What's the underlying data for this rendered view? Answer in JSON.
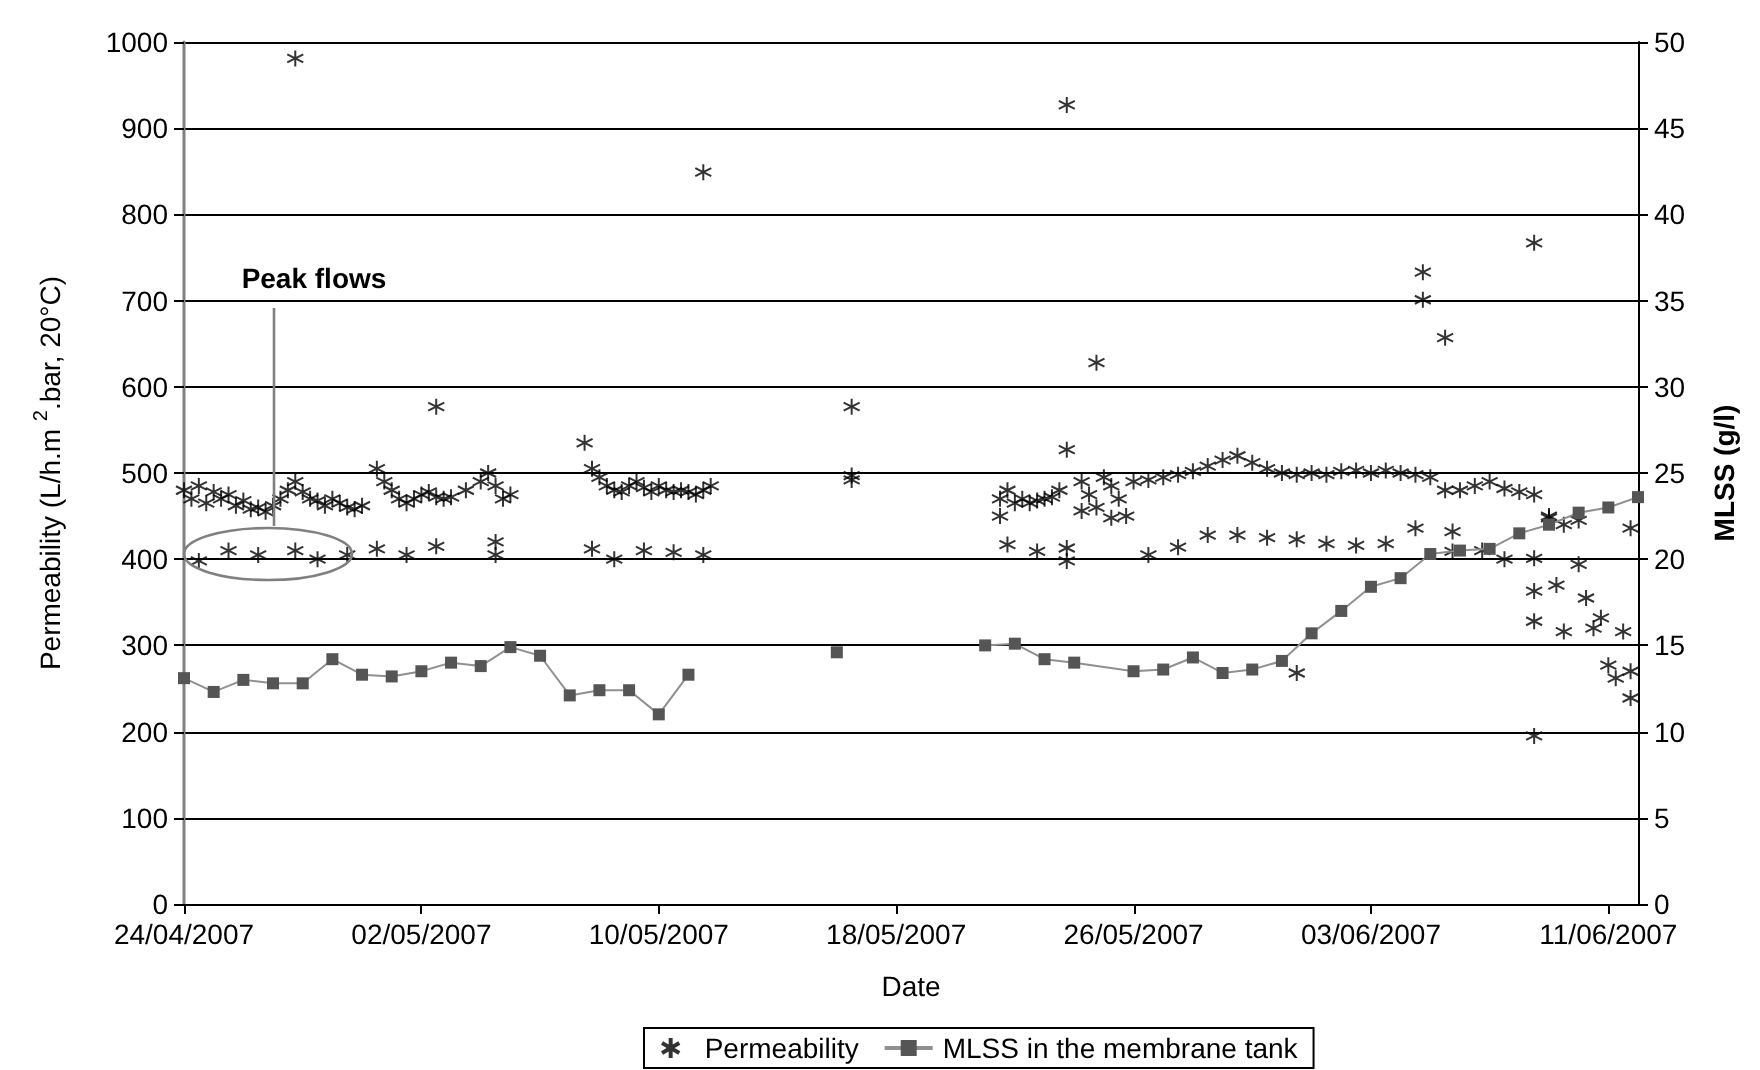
{
  "chart_data": {
    "type": "scatter",
    "xlabel": "Date",
    "ylabel": "Permeability (L/h.m $^{2}$.bar, 20°C)",
    "y2label": "MLSS (g/l)",
    "xlim": [
      "2007-04-24",
      "2007-06-12"
    ],
    "xticks": [
      {
        "value": "2007-04-24",
        "label": "24/04/2007"
      },
      {
        "value": "2007-05-02",
        "label": "02/05/2007"
      },
      {
        "value": "2007-05-10",
        "label": "10/05/2007"
      },
      {
        "value": "2007-05-18",
        "label": "18/05/2007"
      },
      {
        "value": "2007-05-26",
        "label": "26/05/2007"
      },
      {
        "value": "2007-06-03",
        "label": "03/06/2007"
      },
      {
        "value": "2007-06-11",
        "label": "11/06/2007"
      }
    ],
    "ylim": [
      0,
      1000
    ],
    "yticks": [
      0,
      100,
      200,
      300,
      400,
      500,
      600,
      700,
      800,
      900,
      1000
    ],
    "y2lim": [
      0,
      50
    ],
    "y2ticks": [
      0,
      5,
      10,
      15,
      20,
      25,
      30,
      35,
      40,
      45,
      50
    ],
    "grid": "y",
    "legend": "bottom",
    "annotations": [
      "Peak flows"
    ],
    "series": [
      {
        "name": "Permeability",
        "marker": "cross",
        "color": "#000000",
        "x": [
          "2007-04-24T00:00",
          "2007-04-24T06:00",
          "2007-04-24T12:00",
          "2007-04-24T18:00",
          "2007-04-25T00:00",
          "2007-04-25T06:00",
          "2007-04-25T12:00",
          "2007-04-25T18:00",
          "2007-04-26T00:00",
          "2007-04-26T06:00",
          "2007-04-26T12:00",
          "2007-04-26T18:00",
          "2007-04-27T00:00",
          "2007-04-27T06:00",
          "2007-04-27T12:00",
          "2007-04-27T18:00",
          "2007-04-28T00:00",
          "2007-04-28T06:00",
          "2007-04-28T12:00",
          "2007-04-28T18:00",
          "2007-04-29T00:00",
          "2007-04-29T06:00",
          "2007-04-29T12:00",
          "2007-04-29T18:00",
          "2007-04-30T00:00",
          "2007-04-30T12:00",
          "2007-04-30T18:00",
          "2007-05-01T00:00",
          "2007-05-01T06:00",
          "2007-05-01T12:00",
          "2007-05-01T18:00",
          "2007-05-02T00:00",
          "2007-05-02T06:00",
          "2007-05-02T12:00",
          "2007-05-02T18:00",
          "2007-05-03T00:00",
          "2007-05-03T12:00",
          "2007-05-04T00:00",
          "2007-05-04T06:00",
          "2007-05-04T12:00",
          "2007-05-04T18:00",
          "2007-05-05T00:00",
          "2007-05-07T12:00",
          "2007-05-07T18:00",
          "2007-05-08T00:00",
          "2007-05-08T06:00",
          "2007-05-08T12:00",
          "2007-05-08T18:00",
          "2007-05-09T00:00",
          "2007-05-09T06:00",
          "2007-05-09T12:00",
          "2007-05-09T18:00",
          "2007-05-10T00:00",
          "2007-05-10T06:00",
          "2007-05-10T12:00",
          "2007-05-10T18:00",
          "2007-05-11T00:00",
          "2007-05-11T06:00",
          "2007-05-11T12:00",
          "2007-05-11T18:00",
          "2007-05-16T12:00",
          "2007-05-16T12:00",
          "2007-04-24T12:00",
          "2007-04-25T12:00",
          "2007-04-26T12:00",
          "2007-04-27T18:00",
          "2007-04-28T12:00",
          "2007-04-29T12:00",
          "2007-04-30T12:00",
          "2007-05-01T12:00",
          "2007-05-02T12:00",
          "2007-05-04T12:00",
          "2007-05-04T12:00",
          "2007-05-07T18:00",
          "2007-05-08T12:00",
          "2007-05-09T12:00",
          "2007-05-10T12:00",
          "2007-05-11T12:00",
          "2007-04-27T18:00",
          "2007-05-02T12:00",
          "2007-05-11T12:00",
          "2007-05-16T12:00",
          "2007-05-21T12:00",
          "2007-05-21T12:00",
          "2007-05-21T18:00",
          "2007-05-22T00:00",
          "2007-05-22T06:00",
          "2007-05-22T12:00",
          "2007-05-22T18:00",
          "2007-05-23T00:00",
          "2007-05-23T06:00",
          "2007-05-23T12:00",
          "2007-05-23T18:00",
          "2007-05-23T18:00",
          "2007-05-24T18:00",
          "2007-05-24T06:00",
          "2007-05-24T12:00",
          "2007-05-24T18:00",
          "2007-05-25T00:00",
          "2007-05-25T06:00",
          "2007-05-25T12:00",
          "2007-05-25T18:00",
          "2007-05-26T00:00",
          "2007-05-26T12:00",
          "2007-05-27T00:00",
          "2007-05-27T12:00",
          "2007-05-28T00:00",
          "2007-05-28T12:00",
          "2007-05-29T00:00",
          "2007-05-29T12:00",
          "2007-05-30T00:00",
          "2007-05-30T12:00",
          "2007-05-31T00:00",
          "2007-05-31T12:00",
          "2007-06-01T00:00",
          "2007-06-01T12:00",
          "2007-06-02T00:00",
          "2007-06-02T12:00",
          "2007-06-03T00:00",
          "2007-06-03T12:00",
          "2007-06-04T00:00",
          "2007-06-04T12:00",
          "2007-06-05T00:00",
          "2007-06-05T12:00",
          "2007-06-06T00:00",
          "2007-06-06T12:00",
          "2007-06-07T00:00",
          "2007-06-07T12:00",
          "2007-06-08T00:00",
          "2007-06-08T12:00",
          "2007-06-09T00:00",
          "2007-06-09T12:00",
          "2007-06-10T00:00",
          "2007-05-21T18:00",
          "2007-05-22T18:00",
          "2007-05-23T18:00",
          "2007-05-23T18:00",
          "2007-05-24T06:00",
          "2007-05-25T06:00",
          "2007-05-26T12:00",
          "2007-05-27T12:00",
          "2007-05-28T12:00",
          "2007-05-29T12:00",
          "2007-05-30T12:00",
          "2007-05-31T12:00",
          "2007-06-01T12:00",
          "2007-06-02T12:00",
          "2007-06-03T12:00",
          "2007-05-31T12:00",
          "2007-06-04T12:00",
          "2007-06-05T18:00",
          "2007-06-05T18:00",
          "2007-06-06T18:00",
          "2007-06-07T12:00",
          "2007-06-08T12:00",
          "2007-06-08T12:00",
          "2007-06-08T12:00",
          "2007-06-08T12:00",
          "2007-06-09T00:00",
          "2007-06-09T06:00",
          "2007-06-09T12:00",
          "2007-06-10T00:00",
          "2007-06-10T06:00",
          "2007-06-10T12:00",
          "2007-06-10T18:00",
          "2007-06-11T00:00",
          "2007-06-11T06:00",
          "2007-06-11T12:00",
          "2007-06-11T18:00",
          "2007-06-11T18:00",
          "2007-06-11T18:00",
          "2007-06-04T18:00",
          "2007-06-04T18:00",
          "2007-06-05T12:00",
          "2007-06-08T12:00"
        ],
        "values": [
          480,
          470,
          485,
          465,
          478,
          470,
          475,
          462,
          468,
          458,
          460,
          455,
          462,
          470,
          480,
          490,
          478,
          470,
          468,
          462,
          470,
          465,
          460,
          458,
          462,
          505,
          490,
          480,
          470,
          465,
          470,
          475,
          478,
          472,
          470,
          472,
          480,
          490,
          500,
          485,
          470,
          475,
          535,
          505,
          495,
          485,
          480,
          478,
          485,
          490,
          483,
          478,
          485,
          480,
          478,
          480,
          478,
          475,
          480,
          485,
          492,
          497,
          398,
          410,
          405,
          410,
          400,
          405,
          412,
          405,
          415,
          405,
          420,
          412,
          400,
          410,
          408,
          405,
          981,
          577,
          849,
          577,
          470,
          450,
          480,
          465,
          470,
          465,
          468,
          470,
          472,
          480,
          527,
          927,
          628,
          490,
          475,
          460,
          495,
          485,
          470,
          450,
          490,
          492,
          495,
          498,
          502,
          508,
          515,
          520,
          512,
          505,
          500,
          498,
          500,
          498,
          502,
          503,
          500,
          503,
          500,
          498,
          495,
          480,
          480,
          485,
          490,
          482,
          478,
          475,
          450,
          440,
          445,
          417,
          409,
          413,
          398,
          456,
          448,
          405,
          414,
          428,
          428,
          425,
          423,
          418,
          416,
          418,
          268,
          436,
          432,
          409,
          410,
          400,
          401,
          363,
          328,
          195,
          448,
          370,
          316,
          394,
          355,
          320,
          332,
          277,
          262,
          316,
          270,
          239,
          436,
          733,
          701,
          657,
          767
        ]
      },
      {
        "name": "MLSS in the membrane tank",
        "type": "line",
        "axis": "y2",
        "marker": "square",
        "line_style": "solid",
        "color": "#555555",
        "x": [
          "2007-04-24",
          "2007-04-25",
          "2007-04-26",
          "2007-04-27",
          "2007-04-28",
          "2007-04-29",
          "2007-04-30",
          "2007-05-01",
          "2007-05-02",
          "2007-05-03",
          "2007-05-04",
          "2007-05-05",
          "2007-05-06",
          "2007-05-07",
          "2007-05-08",
          "2007-05-09",
          "2007-05-10",
          "2007-05-11",
          "2007-05-13",
          "2007-05-16",
          "2007-05-18",
          "2007-05-21",
          "2007-05-22",
          "2007-05-23",
          "2007-05-24",
          "2007-05-26",
          "2007-05-27",
          "2007-05-28",
          "2007-05-29",
          "2007-05-30",
          "2007-05-31",
          "2007-06-01",
          "2007-06-02",
          "2007-06-03",
          "2007-06-04",
          "2007-06-05",
          "2007-06-06",
          "2007-06-07",
          "2007-06-08",
          "2007-06-09",
          "2007-06-10",
          "2007-06-11",
          "2007-06-12"
        ],
        "values": [
          13.1,
          12.3,
          13.0,
          12.8,
          12.8,
          14.2,
          13.3,
          13.2,
          13.5,
          14.0,
          13.8,
          14.9,
          14.4,
          12.1,
          12.4,
          12.4,
          11.0,
          13.3,
          null,
          14.6,
          null,
          15.0,
          15.1,
          14.2,
          14.0,
          13.5,
          13.6,
          14.3,
          13.4,
          13.6,
          14.1,
          15.7,
          17.0,
          18.4,
          18.9,
          20.3,
          20.5,
          20.6,
          21.5,
          22.0,
          22.7,
          23.0,
          23.6
        ]
      }
    ]
  }
}
